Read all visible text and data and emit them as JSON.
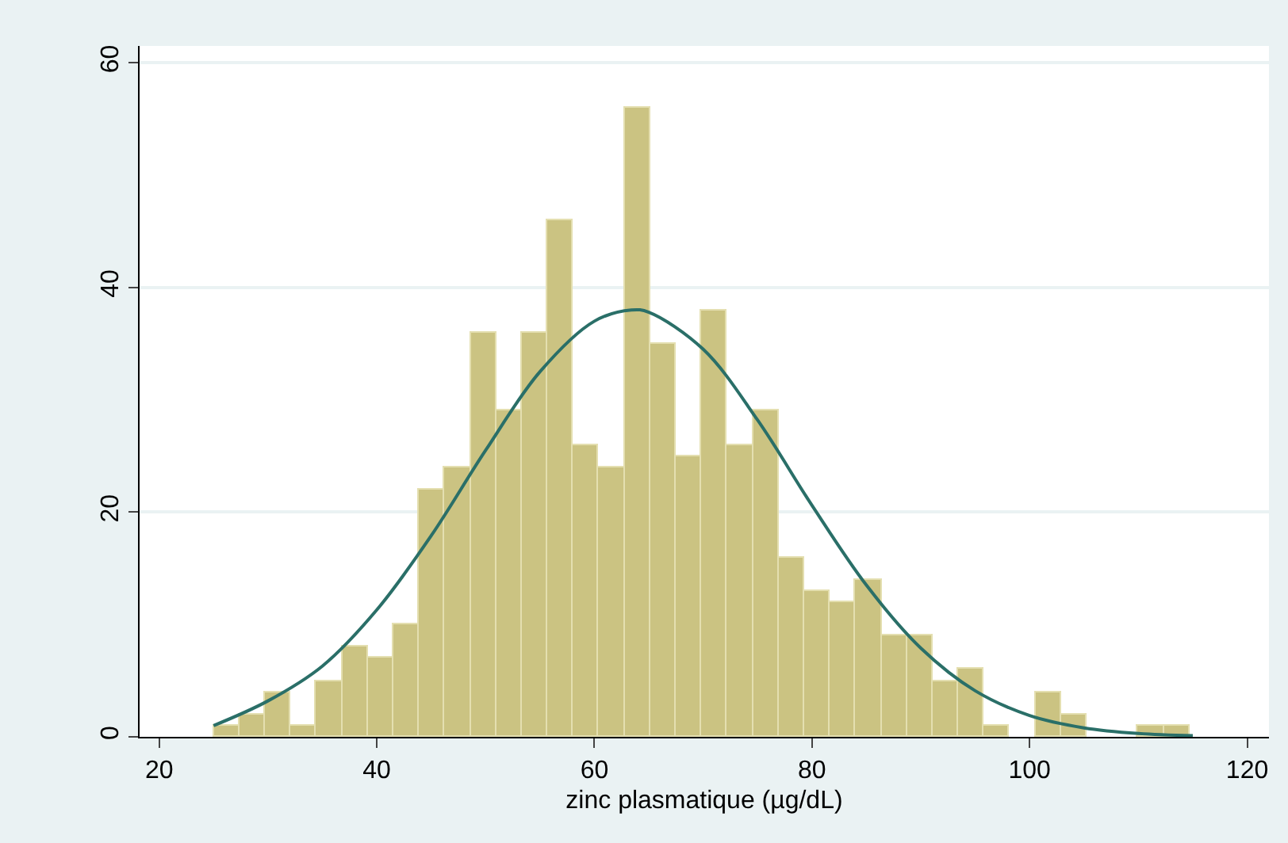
{
  "chart_data": {
    "type": "histogram",
    "xlabel": "zinc plasmatique (µg/dL)",
    "bins": [
      25,
      27.36,
      29.72,
      32.08,
      34.44,
      36.8,
      39.16,
      41.52,
      43.88,
      46.24,
      48.6,
      50.96,
      53.32,
      55.68,
      58.04,
      60.4,
      62.76,
      65.12,
      67.48,
      69.84,
      72.2,
      74.56,
      76.92,
      79.28,
      81.64,
      84.0,
      86.36,
      88.72,
      91.08,
      93.44,
      95.8,
      98.16,
      100.52,
      102.88,
      105.24,
      107.6,
      109.96,
      112.32,
      114.68
    ],
    "values": [
      1,
      2,
      4,
      1,
      5,
      8,
      7,
      10,
      22,
      24,
      36,
      29,
      36,
      46,
      26,
      24,
      56,
      35,
      25,
      38,
      26,
      29,
      16,
      13,
      12,
      14,
      9,
      9,
      5,
      6,
      1,
      0,
      4,
      2,
      0,
      0,
      1,
      1
    ],
    "color": "#cbc382",
    "series": [
      {
        "type": "line",
        "color": "#2a6f68",
        "x": [
          25,
          30,
          35,
          40,
          45,
          50,
          55,
          60,
          63.4,
          65,
          70,
          75,
          80,
          85,
          90,
          95,
          100,
          105,
          110,
          115
        ],
        "values": [
          1.0,
          3.2,
          6.3,
          11.3,
          17.9,
          25.5,
          32.5,
          37.0,
          38.0,
          37.8,
          34.5,
          28.2,
          20.6,
          13.5,
          7.9,
          4.1,
          1.9,
          0.8,
          0.3,
          0.1
        ]
      }
    ],
    "xlim": [
      18.2,
      122
    ],
    "xticks": [
      20,
      40,
      60,
      80,
      100,
      120
    ],
    "ylim": [
      0,
      61.5
    ],
    "yticks": [
      0,
      20,
      40,
      60
    ],
    "grid": "y"
  }
}
